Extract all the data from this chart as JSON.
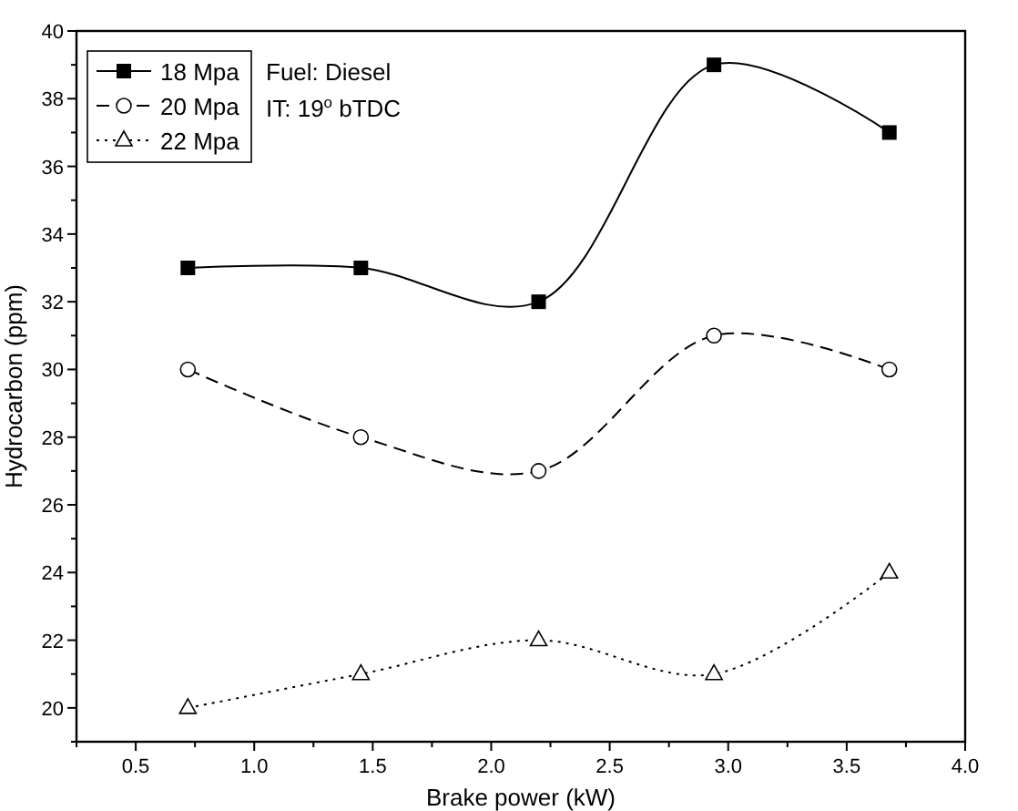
{
  "chart_data": {
    "type": "line",
    "xlabel": "Brake power (kW)",
    "ylabel": "Hydrocarbon (ppm)",
    "xlim": [
      0.25,
      4.0
    ],
    "xticks": [
      {
        "value": 0.25,
        "label": null
      },
      0.5,
      {
        "value": 0.75,
        "label": null
      },
      "1.0",
      {
        "value": 1.25,
        "label": null
      },
      1.5,
      {
        "value": 1.75,
        "label": null
      },
      "2.0",
      {
        "value": 2.25,
        "label": null
      },
      2.5,
      {
        "value": 2.75,
        "label": null
      },
      "3.0",
      {
        "value": 3.25,
        "label": null
      },
      3.5,
      {
        "value": 3.75,
        "label": null
      },
      "4.0"
    ],
    "ylim": [
      19,
      40
    ],
    "yticks": [
      {
        "value": 19,
        "label": null
      },
      20,
      {
        "value": 21,
        "label": null
      },
      22,
      {
        "value": 23,
        "label": null
      },
      24,
      {
        "value": 25,
        "label": null
      },
      26,
      {
        "value": 27,
        "label": null
      },
      28,
      {
        "value": 29,
        "label": null
      },
      30,
      {
        "value": 31,
        "label": null
      },
      32,
      {
        "value": 33,
        "label": null
      },
      34,
      {
        "value": 35,
        "label": null
      },
      36,
      {
        "value": 37,
        "label": null
      },
      38,
      {
        "value": 39,
        "label": null
      },
      40
    ],
    "x": [
      0.72,
      1.45,
      2.2,
      2.94,
      3.68
    ],
    "series": [
      {
        "name": "18 Mpa",
        "color": "#000000",
        "marker": "square",
        "line_style": "solid",
        "values": [
          33,
          33,
          32,
          39,
          37
        ]
      },
      {
        "name": "20 Mpa",
        "color": "#000000",
        "marker": "circle",
        "line_style": "dashed",
        "values": [
          30,
          28,
          27,
          31,
          30
        ]
      },
      {
        "name": "22 Mpa",
        "color": "#000000",
        "marker": "triangle",
        "line_style": "dotted",
        "values": [
          20,
          21,
          22,
          21,
          24
        ]
      }
    ],
    "legend": "top left",
    "grid": false,
    "annotations": [
      "Fuel: Diesel",
      "IT: 19$^{o}$ bTDC"
    ]
  }
}
